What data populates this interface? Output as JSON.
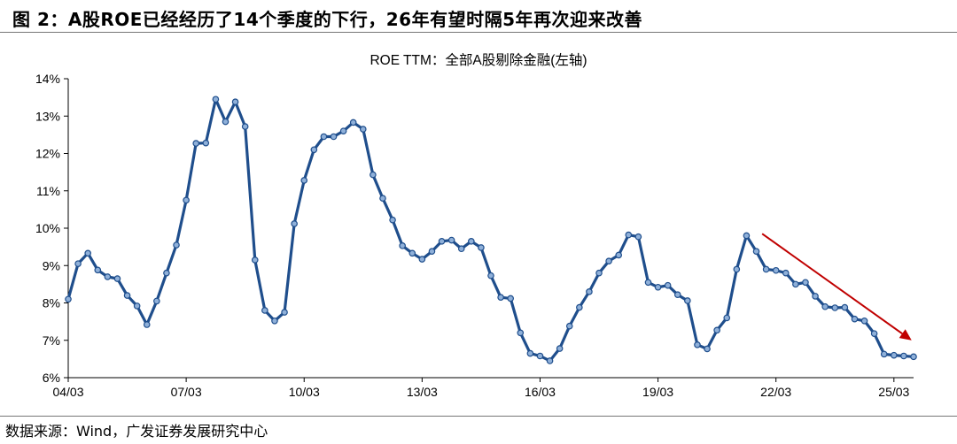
{
  "figure": {
    "title": "图 2：A股ROE已经经历了14个季度的下行，26年有望时隔5年再次迎来改善",
    "source": "数据来源：Wind，广发证券发展研究中心"
  },
  "chart_data": {
    "type": "line",
    "title": "ROE TTM：全部A股剔除金融(左轴)",
    "xlabel": "",
    "ylabel": "",
    "ylim": [
      6,
      14
    ],
    "y_ticks": [
      "6%",
      "7%",
      "8%",
      "9%",
      "10%",
      "11%",
      "12%",
      "13%",
      "14%"
    ],
    "x_tick_labels": [
      "04/03",
      "07/03",
      "10/03",
      "13/03",
      "16/03",
      "19/03",
      "22/03",
      "25/03"
    ],
    "x_tick_positions": [
      0,
      12,
      24,
      36,
      48,
      60,
      72,
      84
    ],
    "grid": false,
    "legend": "none",
    "line_color": "#1f4e8c",
    "marker_color": "#8fb0d9",
    "arrow_color": "#c00000",
    "trend_arrow": {
      "from": [
        70.6,
        9.85
      ],
      "to": [
        85.8,
        7.0
      ]
    },
    "series": [
      {
        "values": [
          8.1,
          9.05,
          9.33,
          8.88,
          8.7,
          8.65,
          8.2,
          7.92,
          7.42,
          8.05,
          8.8,
          9.55,
          10.75,
          12.27,
          12.28,
          13.45,
          12.85,
          13.38,
          12.72,
          9.15,
          7.8,
          7.52,
          7.75,
          10.12,
          11.28,
          12.1,
          12.45,
          12.45,
          12.6,
          12.83,
          12.65,
          11.43,
          10.8,
          10.22,
          9.53,
          9.33,
          9.17,
          9.38,
          9.65,
          9.68,
          9.45,
          9.65,
          9.48,
          8.73,
          8.15,
          8.12,
          7.2,
          6.65,
          6.58,
          6.45,
          6.78,
          7.38,
          7.88,
          8.3,
          8.8,
          9.12,
          9.28,
          9.82,
          9.77,
          8.55,
          8.42,
          8.47,
          8.22,
          8.06,
          6.88,
          6.77,
          7.27,
          7.6,
          8.9,
          9.8,
          9.38,
          8.9,
          8.87,
          8.8,
          8.5,
          8.55,
          8.18,
          7.9,
          7.87,
          7.88,
          7.57,
          7.52,
          7.18,
          6.63,
          6.6,
          6.58,
          6.56
        ]
      }
    ]
  }
}
